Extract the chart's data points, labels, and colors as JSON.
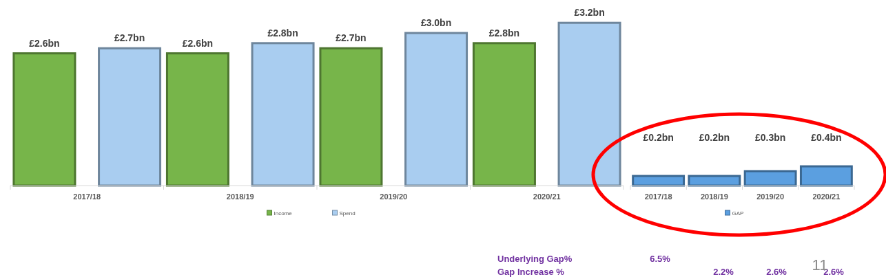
{
  "chart_data": [
    {
      "type": "bar",
      "categories": [
        "2017/18",
        "2018/19",
        "2019/20",
        "2020/21"
      ],
      "series": [
        {
          "name": "Income",
          "color": "#77b54a",
          "values": [
            2.6,
            2.6,
            2.7,
            2.8
          ],
          "value_labels": [
            "£2.6bn",
            "£2.6bn",
            "£2.7bn",
            "£2.8bn"
          ]
        },
        {
          "name": "Spend",
          "color": "#a9cdf0",
          "values": [
            2.7,
            2.8,
            3.0,
            3.2
          ],
          "value_labels": [
            "£2.7bn",
            "£2.8bn",
            "£3.0bn",
            "£3.2bn"
          ]
        }
      ],
      "legend": "bottom"
    },
    {
      "type": "bar",
      "categories": [
        "2017/18",
        "2018/19",
        "2019/20",
        "2020/21"
      ],
      "series": [
        {
          "name": "GAP",
          "color": "#5b9fe0",
          "values": [
            0.2,
            0.2,
            0.3,
            0.4
          ],
          "value_labels": [
            "£0.2bn",
            "£0.2bn",
            "£0.3bn",
            "£0.4bn"
          ]
        }
      ],
      "legend": "bottom",
      "annotations": [
        "Underlying Gap%",
        "6.5%",
        "Gap Increase %",
        "2.2%",
        "2.6%",
        "2.6%",
        "11"
      ]
    }
  ]
}
